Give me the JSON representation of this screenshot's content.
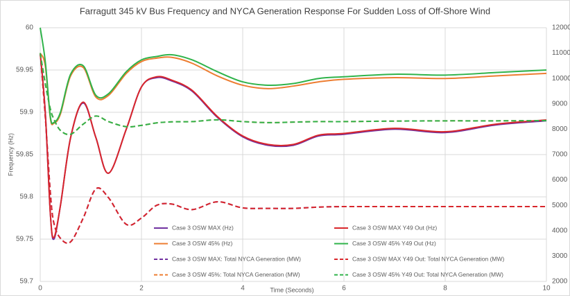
{
  "chart_data": {
    "type": "line",
    "title": "Farragutt 345 kV Bus Frequency and NYCA Generation Response For Sudden Loss of Off-Shore Wind",
    "x_label": "Time (Seconds)",
    "y_label": "Frequency (Hz)",
    "x": [
      0,
      0.1,
      0.2,
      0.27,
      0.4,
      0.6,
      0.85,
      1.1,
      1.35,
      1.7,
      2.0,
      2.3,
      2.6,
      3.0,
      3.5,
      4.0,
      4.5,
      5.0,
      5.5,
      6.0,
      7.0,
      8.0,
      9.0,
      10.0
    ],
    "xlim": [
      0,
      10
    ],
    "xticks": [
      0,
      2,
      4,
      6,
      8,
      10
    ],
    "ylim": [
      59.7,
      60
    ],
    "yticks": [
      60,
      59.95,
      59.9,
      59.85,
      59.8,
      59.75,
      59.7
    ],
    "y2lim": [
      2000,
      12000
    ],
    "y2ticks": [
      12000,
      11000,
      10000,
      9000,
      8000,
      7000,
      6000,
      5000,
      4000,
      3000,
      2000
    ],
    "grid": true,
    "series": [
      {
        "name": "Case 3 OSW MAX (Hz)",
        "color": "#7030a0",
        "dashed": false,
        "values": [
          59.97,
          59.9,
          59.78,
          59.75,
          59.79,
          59.87,
          59.911,
          59.87,
          59.828,
          59.88,
          59.93,
          59.941,
          59.937,
          59.925,
          59.894,
          59.871,
          59.861,
          59.861,
          59.872,
          59.874,
          59.88,
          59.876,
          59.885,
          59.89
        ]
      },
      {
        "name": "Case 3 OSW MAX Y49 Out (Hz)",
        "color": "#d9262b",
        "dashed": false,
        "values": [
          59.97,
          59.9,
          59.78,
          59.752,
          59.79,
          59.87,
          59.912,
          59.87,
          59.828,
          59.88,
          59.93,
          59.942,
          59.938,
          59.926,
          59.895,
          59.872,
          59.862,
          59.862,
          59.873,
          59.875,
          59.881,
          59.877,
          59.886,
          59.891
        ]
      },
      {
        "name": "Case 3 OSW 45% (Hz)",
        "color": "#ed7d31",
        "dashed": false,
        "values": [
          59.97,
          59.955,
          59.893,
          59.887,
          59.898,
          59.943,
          59.953,
          59.918,
          59.92,
          59.946,
          59.96,
          59.964,
          59.965,
          59.958,
          59.943,
          59.932,
          59.928,
          59.931,
          59.936,
          59.939,
          59.941,
          59.94,
          59.943,
          59.946
        ]
      },
      {
        "name": "Case 3 OSW 45% Y49 Out (Hz)",
        "color": "#2fb34a",
        "dashed": false,
        "values": [
          60,
          59.96,
          59.895,
          59.888,
          59.9,
          59.945,
          59.955,
          59.92,
          59.922,
          59.948,
          59.962,
          59.966,
          59.968,
          59.962,
          59.948,
          59.936,
          59.932,
          59.934,
          59.94,
          59.942,
          59.945,
          59.944,
          59.947,
          59.95
        ]
      },
      {
        "name": "Case 3 OSW MAX: Total NYCA Generation (MW)",
        "color": "#7030a0",
        "dashed": true,
        "axis": "y2",
        "values": [
          11000,
          8500,
          5500,
          4300,
          3700,
          3560,
          4500,
          5650,
          5300,
          4250,
          4500,
          5000,
          5050,
          4830,
          5140,
          4900,
          4880,
          4880,
          4930,
          4950,
          4950,
          4950,
          4950,
          4950
        ]
      },
      {
        "name": "Case 3 OSW MAX Y49 Out: Total NYCA Generation (MW)",
        "color": "#d9262b",
        "dashed": true,
        "axis": "y2",
        "values": [
          11000,
          8500,
          5500,
          4300,
          3700,
          3560,
          4500,
          5650,
          5300,
          4250,
          4500,
          5000,
          5050,
          4830,
          5140,
          4900,
          4880,
          4880,
          4930,
          4950,
          4950,
          4950,
          4950,
          4950
        ]
      },
      {
        "name": "Case 3 OSW 45%: Total NYCA Generation (MW)",
        "color": "#ed7d31",
        "dashed": true,
        "axis": "y2",
        "values": [
          11000,
          9800,
          8800,
          8400,
          7950,
          7800,
          8200,
          8520,
          8300,
          8100,
          8150,
          8250,
          8290,
          8300,
          8370,
          8300,
          8260,
          8280,
          8300,
          8300,
          8320,
          8330,
          8330,
          8340
        ]
      },
      {
        "name": "Case 3 OSW 45% Y49 Out: Total NYCA Generation (MW)",
        "color": "#2fb34a",
        "dashed": true,
        "axis": "y2",
        "values": [
          11000,
          9800,
          8800,
          8400,
          7950,
          7800,
          8200,
          8520,
          8300,
          8100,
          8150,
          8250,
          8290,
          8300,
          8370,
          8300,
          8260,
          8280,
          8300,
          8300,
          8320,
          8330,
          8330,
          8340
        ]
      }
    ]
  }
}
